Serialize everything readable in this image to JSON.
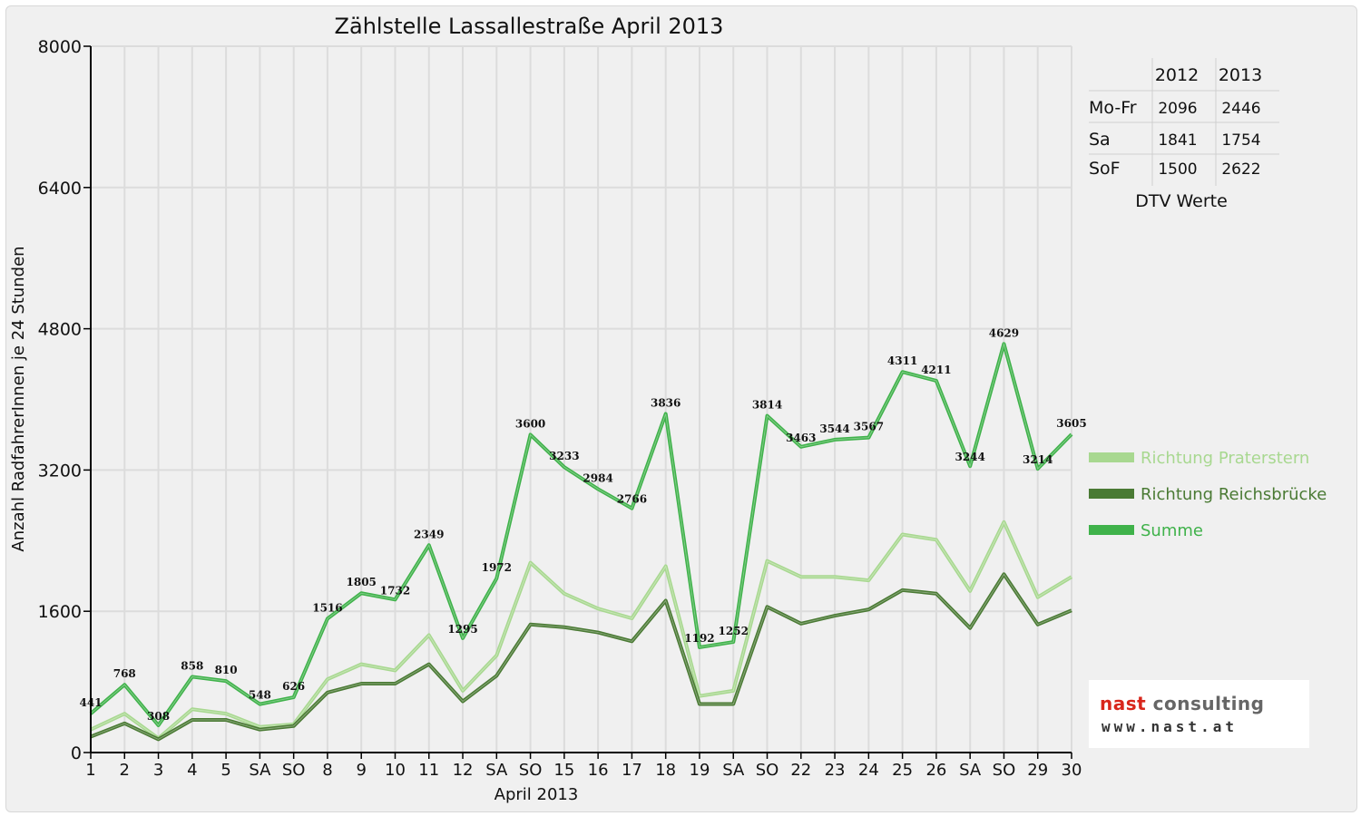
{
  "chart_data": {
    "type": "line",
    "title": "Zählstelle Lassallestraße April 2013",
    "xlabel": "April 2013",
    "ylabel": "Anzahl RadfahrerInnen je 24 Stunden",
    "ylim": [
      0,
      8000
    ],
    "yticks": [
      "0",
      "1600",
      "3200",
      "4800",
      "6400",
      "8000"
    ],
    "grid": "on",
    "legend_position": "right",
    "categories": [
      "1",
      "2",
      "3",
      "4",
      "5",
      "SA",
      "SO",
      "8",
      "9",
      "10",
      "11",
      "12",
      "SA",
      "SO",
      "15",
      "16",
      "17",
      "18",
      "19",
      "SA",
      "SO",
      "22",
      "23",
      "24",
      "25",
      "26",
      "SA",
      "SO",
      "29",
      "30"
    ],
    "red_categories": [
      0,
      6,
      13,
      20,
      27
    ],
    "series": [
      {
        "name": "Richtung Praterstern",
        "color": "#a8d890",
        "values": [
          260,
          440,
          160,
          490,
          440,
          290,
          320,
          830,
          1000,
          930,
          1330,
          700,
          1100,
          2150,
          1800,
          1630,
          1520,
          2110,
          640,
          700,
          2170,
          1990,
          1990,
          1950,
          2470,
          2410,
          1830,
          2610,
          1760,
          1990
        ]
      },
      {
        "name": "Richtung Reichsbrücke",
        "color": "#4a7a34",
        "values": [
          180,
          330,
          150,
          370,
          370,
          260,
          300,
          680,
          780,
          780,
          1000,
          580,
          870,
          1450,
          1420,
          1360,
          1260,
          1720,
          550,
          550,
          1650,
          1460,
          1550,
          1620,
          1840,
          1800,
          1410,
          2020,
          1450,
          1610
        ]
      },
      {
        "name": "Summe",
        "color": "#3fb24a",
        "values": [
          441,
          768,
          308,
          858,
          810,
          548,
          626,
          1516,
          1805,
          1732,
          2349,
          1295,
          1972,
          3600,
          3233,
          2984,
          2766,
          3836,
          1192,
          1252,
          3814,
          3463,
          3544,
          3567,
          4311,
          4211,
          3244,
          4629,
          3214,
          3605
        ]
      }
    ],
    "data_labels": [
      "441",
      "768",
      "308",
      "858",
      "810",
      "548",
      "626",
      "1516",
      "1805",
      "1732",
      "2349",
      "1295",
      "1972",
      "3600",
      "3233",
      "2984",
      "2766",
      "3836",
      "1192",
      "1252",
      "3814",
      "3463",
      "3544",
      "3567",
      "4311",
      "4211",
      "3244",
      "4629",
      "3214",
      "3605"
    ]
  },
  "dtv_table": {
    "header": [
      "",
      "2012",
      "2013"
    ],
    "rows": [
      [
        "Mo-Fr",
        "2096",
        "2446"
      ],
      [
        "Sa",
        "1841",
        "1754"
      ],
      [
        "SoF",
        "1500",
        "2622"
      ]
    ],
    "caption": "DTV Werte"
  },
  "logo": {
    "name_part1": "nast ",
    "name_part2": "consulting",
    "url": "www.nast.at"
  },
  "colors": {
    "weekend_red": "#e00000",
    "grid": "#dcdcdc"
  }
}
